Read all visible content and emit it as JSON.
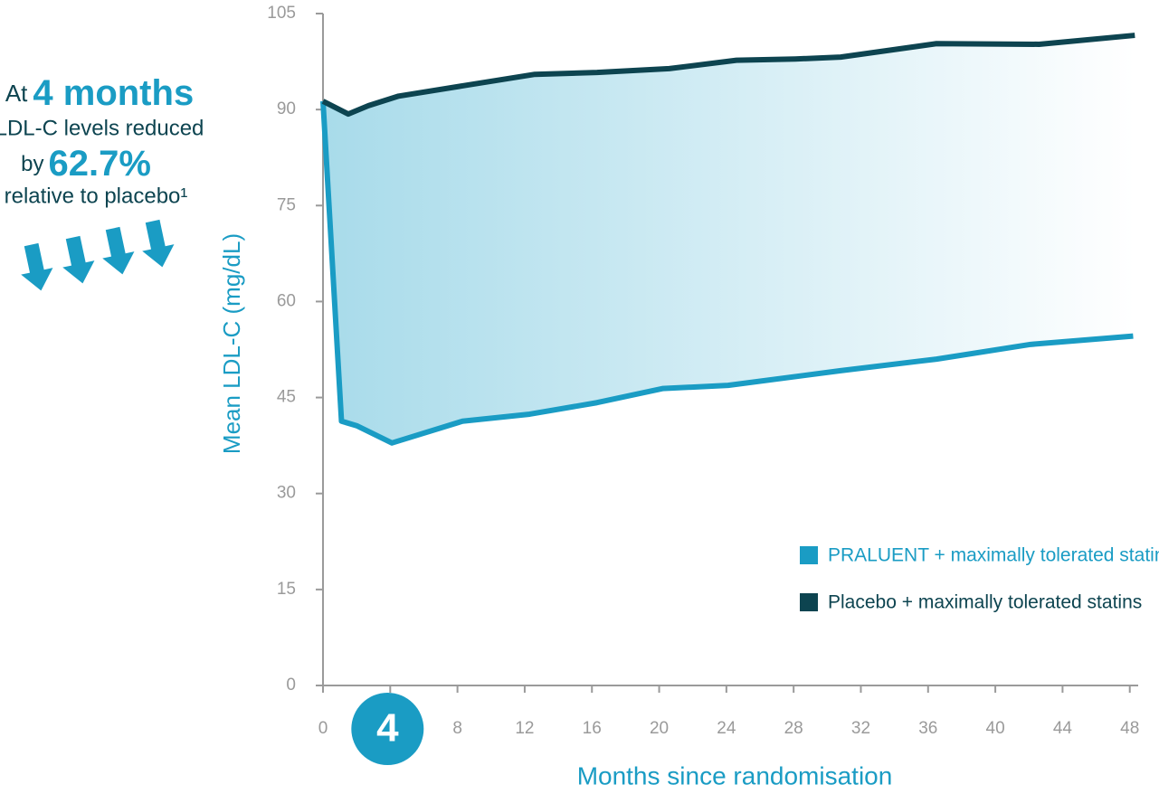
{
  "chart_data": {
    "type": "line",
    "annotation": {
      "prefix": "At",
      "highlight_1": "4 months",
      "line_2": "LDL-C levels reduced",
      "line_3_prefix": "by",
      "highlight_2": "62.7%",
      "line_4": "relative to placebo¹"
    },
    "y_label": "Mean LDL-C (mg/dL)",
    "x_label": "Months since randomisation",
    "xlim": [
      0,
      48.5
    ],
    "ylim": [
      0,
      105
    ],
    "xticks": [
      0,
      4,
      8,
      12,
      16,
      20,
      24,
      28,
      32,
      36,
      40,
      44,
      48
    ],
    "yticks": [
      0,
      15,
      30,
      45,
      60,
      75,
      90,
      105
    ],
    "highlighted_xtick": 4,
    "legend": "bottom-right",
    "series": [
      {
        "name": "PRALUENT + maximally tolerated statins",
        "color": "#1a9cc4",
        "x": [
          0,
          1.1,
          2.0,
          4.1,
          8.3,
          12.3,
          16.3,
          20.2,
          24.1,
          30.8,
          36.5,
          42.1,
          48.2
        ],
        "values": [
          91.3,
          41.3,
          40.6,
          37.9,
          41.3,
          42.4,
          44.2,
          46.4,
          46.9,
          49.2,
          51.0,
          53.3,
          54.6
        ]
      },
      {
        "name": "Placebo + maximally tolerated statins",
        "color": "#0d4450",
        "x": [
          0,
          1.5,
          2.7,
          4.5,
          8.3,
          12.6,
          16.3,
          20.6,
          24.6,
          28.1,
          30.8,
          36.5,
          42.6,
          48.3
        ],
        "values": [
          91.3,
          89.3,
          90.6,
          92.1,
          93.7,
          95.5,
          95.8,
          96.4,
          97.7,
          97.9,
          98.2,
          100.3,
          100.2,
          101.6
        ]
      }
    ]
  }
}
